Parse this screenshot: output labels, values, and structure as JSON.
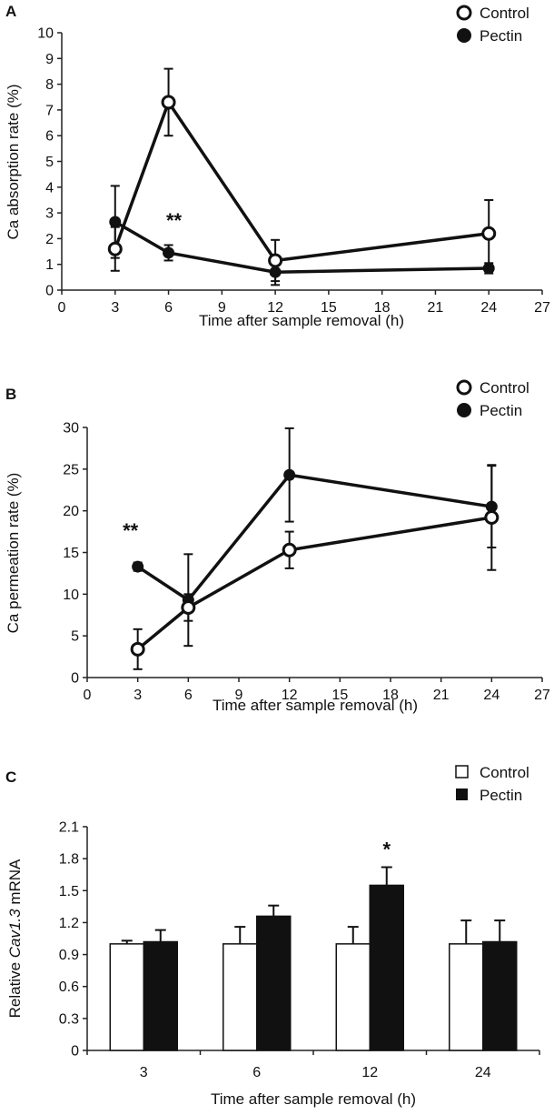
{
  "chart_data": [
    {
      "panel": "A",
      "type": "line",
      "x": [
        3,
        6,
        12,
        24
      ],
      "series": [
        {
          "name": "Control",
          "marker": "open-circle",
          "values": [
            1.6,
            7.3,
            1.15,
            2.2
          ],
          "errors": [
            0.85,
            1.3,
            0.8,
            1.3
          ]
        },
        {
          "name": "Pectin",
          "marker": "filled-circle",
          "values": [
            2.65,
            1.45,
            0.7,
            0.85
          ],
          "errors": [
            1.4,
            0.3,
            0.5,
            0.2
          ]
        }
      ],
      "xlabel": "Time after sample removal (h)",
      "ylabel": "Ca absorption rate (%)",
      "xlim": [
        0,
        27
      ],
      "ylim": [
        0,
        10
      ],
      "xticks": [
        "0",
        "3",
        "6",
        "9",
        "12",
        "15",
        "18",
        "21",
        "24",
        "27"
      ],
      "yticks": [
        "0",
        "1",
        "2",
        "3",
        "4",
        "5",
        "6",
        "7",
        "8",
        "9",
        "10"
      ],
      "annotations": [
        {
          "text": "**",
          "x": 6
        }
      ]
    },
    {
      "panel": "B",
      "type": "line",
      "x": [
        3,
        6,
        12,
        24
      ],
      "series": [
        {
          "name": "Control",
          "marker": "open-circle",
          "values": [
            3.4,
            8.4,
            15.3,
            19.2
          ],
          "errors": [
            2.4,
            1.6,
            2.2,
            6.3
          ]
        },
        {
          "name": "Pectin",
          "marker": "filled-circle",
          "values": [
            13.3,
            9.3,
            24.3,
            20.5
          ],
          "errors": [
            0.5,
            5.5,
            5.6,
            4.9
          ]
        }
      ],
      "xlabel": "Time after sample removal (h)",
      "ylabel": "Ca permeation rate (%)",
      "xlim": [
        0,
        27
      ],
      "ylim": [
        0,
        30
      ],
      "xticks": [
        "0",
        "3",
        "6",
        "9",
        "12",
        "15",
        "18",
        "21",
        "24",
        "27"
      ],
      "yticks": [
        "0",
        "5",
        "10",
        "15",
        "20",
        "25",
        "30"
      ],
      "annotations": [
        {
          "text": "**",
          "x": 3
        }
      ]
    },
    {
      "panel": "C",
      "type": "bar",
      "categories": [
        "3",
        "6",
        "12",
        "24"
      ],
      "series": [
        {
          "name": "Control",
          "fill": "white",
          "values": [
            1.0,
            1.0,
            1.0,
            1.0
          ],
          "errors": [
            0.03,
            0.16,
            0.16,
            0.22
          ]
        },
        {
          "name": "Pectin",
          "fill": "black",
          "values": [
            1.02,
            1.26,
            1.55,
            1.02
          ],
          "errors": [
            0.11,
            0.1,
            0.17,
            0.2
          ]
        }
      ],
      "xlabel": "Time after sample removal (h)",
      "ylabel_prefix": "Relative ",
      "ylabel_italic": "Cav1.3",
      "ylabel_suffix": " mRNA",
      "ylim": [
        0,
        2.1
      ],
      "yticks": [
        "0",
        "0.3",
        "0.6",
        "0.9",
        "1.2",
        "1.5",
        "1.8",
        "2.1"
      ],
      "annotations": [
        {
          "text": "*",
          "category": "12"
        }
      ]
    }
  ]
}
